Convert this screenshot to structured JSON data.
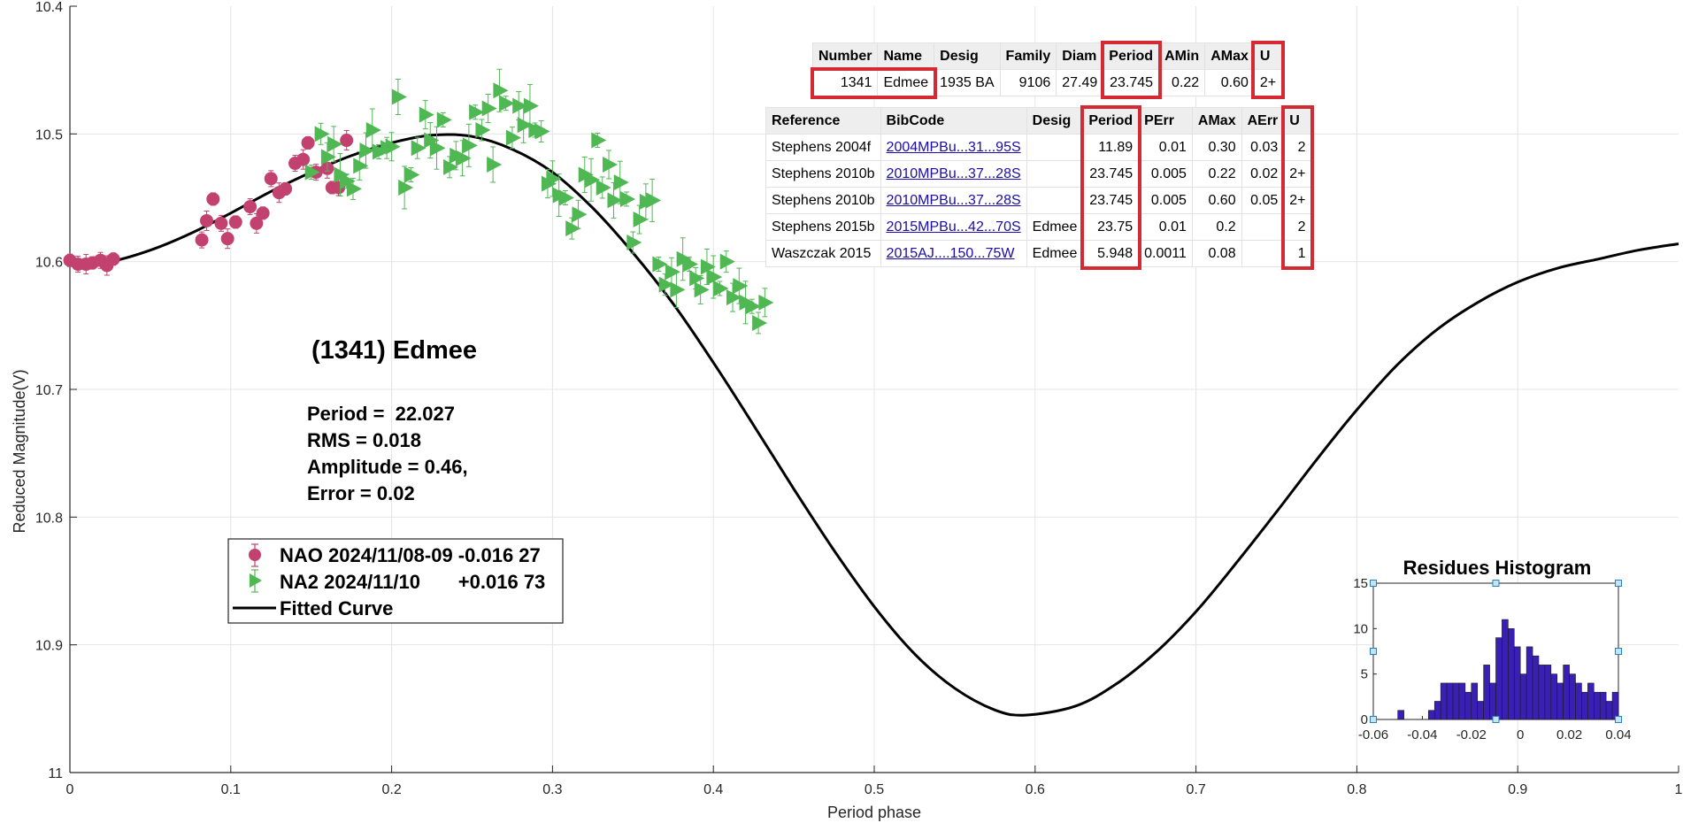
{
  "chart_data": [
    {
      "type": "scatter",
      "title": "",
      "xlabel": "Period phase",
      "ylabel": "Reduced Magnitude(V)",
      "xlim": [
        0,
        1
      ],
      "ylim": [
        11,
        10.4
      ],
      "y_reversed": true,
      "grid": true,
      "xticks": [
        0,
        0.1,
        0.2,
        0.3,
        0.4,
        0.5,
        0.6,
        0.7,
        0.8,
        0.9,
        1
      ],
      "xtick_labels": [
        "0",
        "0.1",
        "0.2",
        "0.3",
        "0.4",
        "0.5",
        "0.6",
        "0.7",
        "0.8",
        "0.9",
        "1"
      ],
      "yticks": [
        10.4,
        10.5,
        10.6,
        10.7,
        10.8,
        10.9,
        11
      ],
      "ytick_labels": [
        "10.4",
        "10.5",
        "10.6",
        "10.7",
        "10.8",
        "10.9",
        "11"
      ],
      "legend_position": "middle-left",
      "annotations": {
        "object": "(1341) Edmee",
        "period": "Period =  22.027",
        "rms": "RMS = 0.018",
        "amplitude": "Amplitude = 0.46,",
        "error": "Error = 0.02"
      },
      "series": [
        {
          "name": "NAO 2024/11/08-09 -0.016 27",
          "marker": "circle",
          "color": "#c2416e",
          "points": [
            [
              0.0,
              10.599
            ],
            [
              0.005,
              10.602
            ],
            [
              0.01,
              10.602
            ],
            [
              0.014,
              10.601
            ],
            [
              0.019,
              10.599
            ],
            [
              0.023,
              10.603
            ],
            [
              0.027,
              10.598
            ],
            [
              0.082,
              10.583
            ],
            [
              0.085,
              10.568
            ],
            [
              0.089,
              10.551
            ],
            [
              0.094,
              10.57
            ],
            [
              0.098,
              10.582
            ],
            [
              0.103,
              10.569
            ],
            [
              0.112,
              10.557
            ],
            [
              0.116,
              10.57
            ],
            [
              0.12,
              10.562
            ],
            [
              0.125,
              10.535
            ],
            [
              0.13,
              10.546
            ],
            [
              0.134,
              10.543
            ],
            [
              0.14,
              10.523
            ],
            [
              0.145,
              10.52
            ],
            [
              0.148,
              10.507
            ],
            [
              0.153,
              10.53
            ],
            [
              0.16,
              10.527
            ],
            [
              0.163,
              10.542
            ],
            [
              0.167,
              10.542
            ],
            [
              0.172,
              10.505
            ]
          ]
        },
        {
          "name": "NA2 2024/11/10       +0.016 73",
          "marker": "triangle-right",
          "color": "#4fb853",
          "points": [
            [
              0.15,
              10.53
            ],
            [
              0.156,
              10.5
            ],
            [
              0.16,
              10.518
            ],
            [
              0.164,
              10.508
            ],
            [
              0.168,
              10.532
            ],
            [
              0.172,
              10.537
            ],
            [
              0.176,
              10.543
            ],
            [
              0.18,
              10.525
            ],
            [
              0.184,
              10.513
            ],
            [
              0.188,
              10.497
            ],
            [
              0.192,
              10.514
            ],
            [
              0.197,
              10.511
            ],
            [
              0.2,
              10.51
            ],
            [
              0.204,
              10.471
            ],
            [
              0.208,
              10.542
            ],
            [
              0.212,
              10.532
            ],
            [
              0.216,
              10.511
            ],
            [
              0.221,
              10.485
            ],
            [
              0.224,
              10.505
            ],
            [
              0.228,
              10.511
            ],
            [
              0.232,
              10.489
            ],
            [
              0.236,
              10.526
            ],
            [
              0.24,
              10.517
            ],
            [
              0.244,
              10.519
            ],
            [
              0.248,
              10.509
            ],
            [
              0.252,
              10.483
            ],
            [
              0.256,
              10.497
            ],
            [
              0.26,
              10.48
            ],
            [
              0.263,
              10.524
            ],
            [
              0.267,
              10.466
            ],
            [
              0.271,
              10.476
            ],
            [
              0.275,
              10.503
            ],
            [
              0.279,
              10.478
            ],
            [
              0.282,
              10.493
            ],
            [
              0.286,
              10.478
            ],
            [
              0.289,
              10.497
            ],
            [
              0.293,
              10.498
            ],
            [
              0.297,
              10.539
            ],
            [
              0.3,
              10.535
            ],
            [
              0.304,
              10.548
            ],
            [
              0.308,
              10.55
            ],
            [
              0.312,
              10.574
            ],
            [
              0.316,
              10.563
            ],
            [
              0.32,
              10.532
            ],
            [
              0.324,
              10.536
            ],
            [
              0.328,
              10.505
            ],
            [
              0.331,
              10.542
            ],
            [
              0.335,
              10.524
            ],
            [
              0.338,
              10.552
            ],
            [
              0.342,
              10.538
            ],
            [
              0.346,
              10.551
            ],
            [
              0.35,
              10.585
            ],
            [
              0.354,
              10.567
            ],
            [
              0.358,
              10.553
            ],
            [
              0.362,
              10.552
            ],
            [
              0.366,
              10.602
            ],
            [
              0.37,
              10.618
            ],
            [
              0.374,
              10.608
            ],
            [
              0.377,
              10.622
            ],
            [
              0.381,
              10.598
            ],
            [
              0.385,
              10.602
            ],
            [
              0.389,
              10.613
            ],
            [
              0.392,
              10.622
            ],
            [
              0.396,
              10.604
            ],
            [
              0.4,
              10.612
            ],
            [
              0.404,
              10.621
            ],
            [
              0.408,
              10.6
            ],
            [
              0.412,
              10.628
            ],
            [
              0.416,
              10.619
            ],
            [
              0.42,
              10.632
            ],
            [
              0.424,
              10.635
            ],
            [
              0.428,
              10.648
            ],
            [
              0.432,
              10.632
            ]
          ]
        },
        {
          "name": "Fitted Curve",
          "marker": "line",
          "color": "#000000",
          "points": [
            [
              0.0,
              10.603
            ],
            [
              0.025,
              10.6
            ],
            [
              0.05,
              10.591
            ],
            [
              0.075,
              10.578
            ],
            [
              0.1,
              10.562
            ],
            [
              0.125,
              10.545
            ],
            [
              0.15,
              10.53
            ],
            [
              0.175,
              10.517
            ],
            [
              0.2,
              10.507
            ],
            [
              0.225,
              10.501
            ],
            [
              0.25,
              10.502
            ],
            [
              0.275,
              10.512
            ],
            [
              0.3,
              10.53
            ],
            [
              0.325,
              10.558
            ],
            [
              0.35,
              10.593
            ],
            [
              0.375,
              10.633
            ],
            [
              0.4,
              10.679
            ],
            [
              0.425,
              10.728
            ],
            [
              0.45,
              10.778
            ],
            [
              0.475,
              10.826
            ],
            [
              0.5,
              10.87
            ],
            [
              0.525,
              10.907
            ],
            [
              0.55,
              10.934
            ],
            [
              0.575,
              10.951
            ],
            [
              0.594,
              10.955
            ],
            [
              0.625,
              10.948
            ],
            [
              0.65,
              10.931
            ],
            [
              0.675,
              10.906
            ],
            [
              0.7,
              10.874
            ],
            [
              0.725,
              10.836
            ],
            [
              0.75,
              10.796
            ],
            [
              0.775,
              10.755
            ],
            [
              0.8,
              10.716
            ],
            [
              0.825,
              10.681
            ],
            [
              0.85,
              10.653
            ],
            [
              0.875,
              10.632
            ],
            [
              0.9,
              10.616
            ],
            [
              0.925,
              10.605
            ],
            [
              0.95,
              10.598
            ],
            [
              0.975,
              10.591
            ],
            [
              1.0,
              10.586
            ]
          ]
        }
      ]
    },
    {
      "type": "bar",
      "title": "Residues Histogram",
      "xlim": [
        -0.06,
        0.04
      ],
      "ylim": [
        0,
        15
      ],
      "xticks": [
        -0.06,
        -0.04,
        -0.02,
        0,
        0.02,
        0.04
      ],
      "xtick_labels": [
        "-0.06",
        "-0.04",
        "-0.02",
        "0",
        "0.02",
        "0.04"
      ],
      "yticks": [
        0,
        5,
        10,
        15
      ],
      "ytick_labels": [
        "0",
        "5",
        "10",
        "15"
      ],
      "bin_width": 0.0025,
      "color": "#3a1fb5",
      "bin_starts": [
        -0.05,
        -0.0475,
        -0.045,
        -0.0425,
        -0.04,
        -0.0375,
        -0.035,
        -0.0325,
        -0.03,
        -0.0275,
        -0.025,
        -0.0225,
        -0.02,
        -0.0175,
        -0.015,
        -0.0125,
        -0.01,
        -0.0075,
        -0.005,
        -0.0025,
        0,
        0.0025,
        0.005,
        0.0075,
        0.01,
        0.0125,
        0.015,
        0.0175,
        0.02,
        0.0225,
        0.025,
        0.0275,
        0.03,
        0.0325,
        0.035,
        0.0375
      ],
      "values": [
        1,
        0,
        0,
        0,
        0,
        1,
        2,
        4,
        4,
        4,
        4,
        3,
        4,
        2,
        6,
        4,
        9,
        11,
        10,
        8,
        5,
        8,
        7,
        6,
        6,
        5,
        4,
        6,
        5,
        4,
        3,
        4,
        3,
        3,
        2,
        3
      ]
    }
  ],
  "legend": {
    "items": [
      {
        "label": "NAO 2024/11/08-09 -0.016 27"
      },
      {
        "label": "NA2 2024/11/10       +0.016 73"
      },
      {
        "label": "Fitted Curve"
      }
    ]
  },
  "top_table": {
    "headers": [
      "Number",
      "Name",
      "Desig",
      "Family",
      "Diam",
      "Period",
      "AMin",
      "AMax",
      "U"
    ],
    "row": [
      "1341",
      "Edmee",
      "1935 BA",
      "9106",
      "27.49",
      "23.745",
      "0.22",
      "0.60",
      "2+"
    ]
  },
  "ref_table": {
    "headers": [
      "Reference",
      "BibCode",
      "Desig",
      "Period",
      "PErr",
      "AMax",
      "AErr",
      "U"
    ],
    "rows": [
      [
        "Stephens 2004f",
        "2004MPBu...31...95S",
        "",
        "11.89",
        "0.01",
        "0.30",
        "0.03",
        "2"
      ],
      [
        "Stephens 2010b",
        "2010MPBu...37...28S",
        "",
        "23.745",
        "0.005",
        "0.22",
        "0.02",
        "2+"
      ],
      [
        "Stephens 2010b",
        "2010MPBu...37...28S",
        "",
        "23.745",
        "0.005",
        "0.60",
        "0.05",
        "2+"
      ],
      [
        "Stephens 2015b",
        "2015MPBu...42...70S",
        "Edmee",
        "23.75",
        "0.01",
        "0.2",
        "",
        "2"
      ],
      [
        "Waszczak 2015",
        "2015AJ....150...75W",
        "Edmee",
        "5.948",
        "0.0011",
        "0.08",
        "",
        "1"
      ]
    ]
  },
  "colors": {
    "highlight": "#d42a33",
    "grid": "#e4e4e4",
    "axis": "#262626"
  }
}
